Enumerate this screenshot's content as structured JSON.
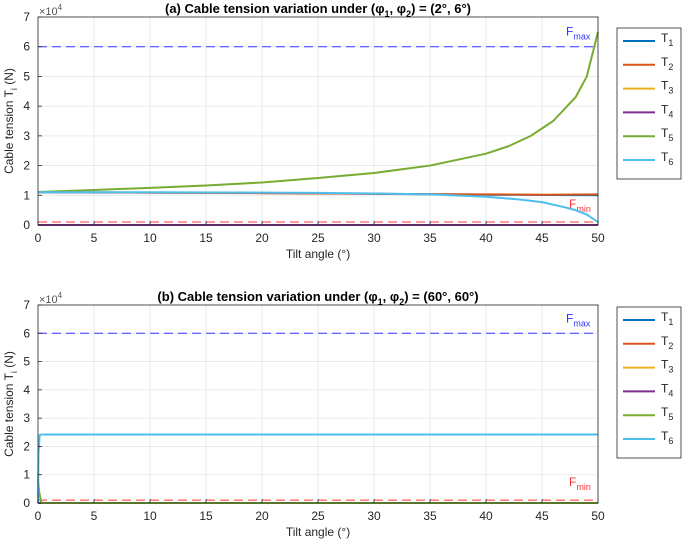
{
  "legend_series": [
    {
      "label_main": "T",
      "label_sub": "1",
      "color": "#0072BD"
    },
    {
      "label_main": "T",
      "label_sub": "2",
      "color": "#D95319"
    },
    {
      "label_main": "T",
      "label_sub": "3",
      "color": "#EDB120"
    },
    {
      "label_main": "T",
      "label_sub": "4",
      "color": "#7E2F8E"
    },
    {
      "label_main": "T",
      "label_sub": "5",
      "color": "#77AC30"
    },
    {
      "label_main": "T",
      "label_sub": "6",
      "color": "#4DBEEE"
    }
  ],
  "fmax": {
    "label_main": "F",
    "label_sub": "max",
    "value": 60000,
    "color": "#3333ff"
  },
  "fmin": {
    "label_main": "F",
    "label_sub": "min",
    "value": 1000,
    "color": "#ff3333"
  },
  "chart_data": [
    {
      "type": "line",
      "title_parts": {
        "prefix": "(a) Cable tension variation under (",
        "phi": "φ",
        "s1": "1",
        "comma": ", ",
        "s2": "2",
        "suffix": ") = (2°, 6°)"
      },
      "xlabel": "Tilt angle (°)",
      "ylabel_main": "Cable tension T",
      "ylabel_sub": "i",
      "ylabel_unit": " (N)",
      "exponent_label": "×10",
      "exponent_power": "4",
      "xlim": [
        0,
        50
      ],
      "ylim": [
        0,
        70000
      ],
      "xticks": [
        0,
        5,
        10,
        15,
        20,
        25,
        30,
        35,
        40,
        45,
        50
      ],
      "yticks": [
        0,
        10000,
        20000,
        30000,
        40000,
        50000,
        60000,
        70000
      ],
      "ytick_labels": [
        "0",
        "1",
        "2",
        "3",
        "4",
        "5",
        "6",
        "7"
      ],
      "grid": true,
      "legend_position": "right",
      "series": [
        {
          "name": "T1",
          "x": [
            0,
            10,
            20,
            30,
            40,
            50
          ],
          "y": [
            11000,
            10900,
            10800,
            10500,
            10200,
            10000
          ]
        },
        {
          "name": "T2",
          "x": [
            0,
            10,
            20,
            30,
            40,
            45,
            50
          ],
          "y": [
            11000,
            10900,
            10700,
            10500,
            10300,
            10200,
            10300
          ]
        },
        {
          "name": "T3",
          "x": [
            0,
            50
          ],
          "y": [
            0,
            0
          ]
        },
        {
          "name": "T4",
          "x": [
            0,
            50
          ],
          "y": [
            0,
            0
          ]
        },
        {
          "name": "T5",
          "x": [
            0,
            5,
            10,
            15,
            20,
            25,
            30,
            35,
            40,
            42,
            44,
            46,
            48,
            49,
            50
          ],
          "y": [
            11100,
            11800,
            12500,
            13300,
            14300,
            15800,
            17500,
            20000,
            24000,
            26500,
            30000,
            35000,
            43000,
            50000,
            65000
          ]
        },
        {
          "name": "T6",
          "x": [
            0,
            10,
            20,
            25,
            30,
            35,
            40,
            43,
            45,
            47,
            48,
            49,
            50
          ],
          "y": [
            11000,
            11000,
            10900,
            10800,
            10600,
            10300,
            9500,
            8600,
            7700,
            6000,
            5000,
            3500,
            1000
          ]
        }
      ]
    },
    {
      "type": "line",
      "title_parts": {
        "prefix": "(b) Cable tension variation under (",
        "phi": "φ",
        "s1": "1",
        "comma": ", ",
        "s2": "2",
        "suffix": ") = (60°, 60°)"
      },
      "xlabel": "Tilt angle (°)",
      "ylabel_main": "Cable tension T",
      "ylabel_sub": "i",
      "ylabel_unit": " (N)",
      "exponent_label": "×10",
      "exponent_power": "4",
      "xlim": [
        0,
        50
      ],
      "ylim": [
        0,
        70000
      ],
      "xticks": [
        0,
        5,
        10,
        15,
        20,
        25,
        30,
        35,
        40,
        45,
        50
      ],
      "yticks": [
        0,
        10000,
        20000,
        30000,
        40000,
        50000,
        60000,
        70000
      ],
      "ytick_labels": [
        "0",
        "1",
        "2",
        "3",
        "4",
        "5",
        "6",
        "7"
      ],
      "grid": true,
      "legend_position": "right",
      "series": [
        {
          "name": "T1",
          "x": [
            0,
            50
          ],
          "y": [
            0,
            0
          ]
        },
        {
          "name": "T2",
          "x": [
            0,
            50
          ],
          "y": [
            0,
            0
          ]
        },
        {
          "name": "T3",
          "x": [
            0,
            50
          ],
          "y": [
            0,
            0
          ]
        },
        {
          "name": "T4",
          "x": [
            0,
            50
          ],
          "y": [
            0,
            0
          ]
        },
        {
          "name": "T5",
          "x": [
            0,
            0.1,
            0.3,
            50
          ],
          "y": [
            8000,
            4000,
            0,
            0
          ]
        },
        {
          "name": "T6",
          "x": [
            0,
            0.05,
            0.15,
            0.3,
            50
          ],
          "y": [
            0,
            18000,
            24000,
            24200,
            24200
          ]
        }
      ]
    }
  ]
}
